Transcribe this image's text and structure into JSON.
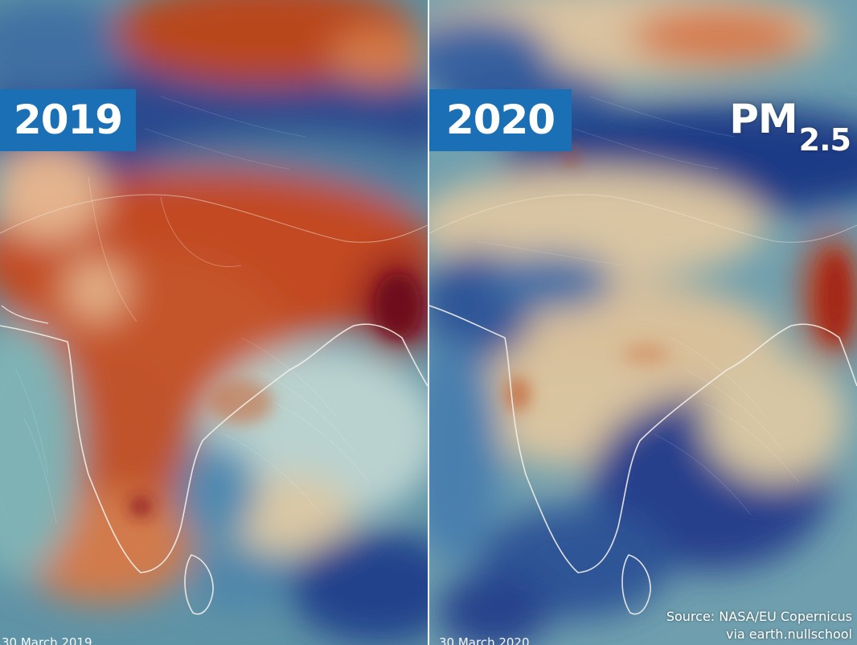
{
  "left_panel": {
    "year": "2019",
    "date": "30 March 2019"
  },
  "right_panel": {
    "year": "2020",
    "date": "30 March 2020"
  },
  "pollutant": {
    "base": "PM",
    "subscript": "2.5"
  },
  "source": {
    "line1": "Source: NASA/EU Copernicus",
    "line2": "via earth.nullschool"
  },
  "colors": {
    "badge": "#1a6fb5",
    "high_pollution": "#b83a1c",
    "moderate": "#e8c9a0",
    "low_pollution": "#1e3f8a",
    "coastline": "#f3efe9"
  }
}
